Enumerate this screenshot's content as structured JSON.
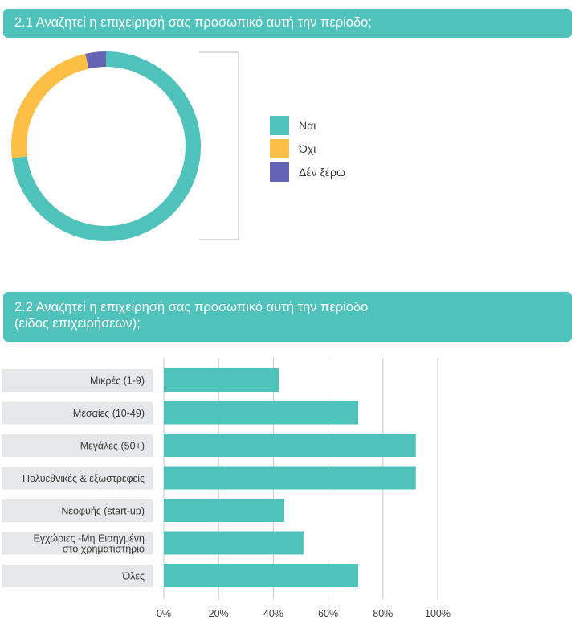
{
  "section1": {
    "title": "2.1 Αναζητεί η επιχείρησή σας προσωπικό αυτή την περίοδο;"
  },
  "section2": {
    "title_line1": "2.2 Αναζητεί η επιχείρησή σας προσωπικό αυτή την περίοδο",
    "title_line2": "(είδος επιχειρήσεων);"
  },
  "colors": {
    "banner": "#4fc2bb",
    "yes": "#4fc2bb",
    "no": "#fbbf45",
    "dontknow": "#6464b4",
    "category_bg": "#e6e7e8",
    "grid": "#c8c8c8"
  },
  "chart_data": [
    {
      "type": "pie",
      "donut": true,
      "categories": [
        "Ναι",
        "Όχι",
        "Δέν ξέρω"
      ],
      "values": [
        73,
        23.5,
        3.5
      ],
      "legend_position": "right"
    },
    {
      "type": "bar",
      "orientation": "horizontal",
      "categories": [
        [
          "Μικρές (1-9)"
        ],
        [
          "Μεσαίες (10-49)"
        ],
        [
          "Μεγάλες (50+)"
        ],
        [
          "Πολυεθνικές & εξωστρεφείς"
        ],
        [
          "Νεοφυής (start-up)"
        ],
        [
          "Εγχώριες -Μη Εισηγμένη",
          "στο χρηματιστήριο"
        ],
        [
          "Όλες"
        ]
      ],
      "values": [
        42,
        71,
        92,
        92,
        44,
        51,
        71
      ],
      "xlim": [
        0,
        100
      ],
      "xticks": [
        "0%",
        "20%",
        "40%",
        "60%",
        "80%",
        "100%"
      ],
      "grid": true
    }
  ]
}
